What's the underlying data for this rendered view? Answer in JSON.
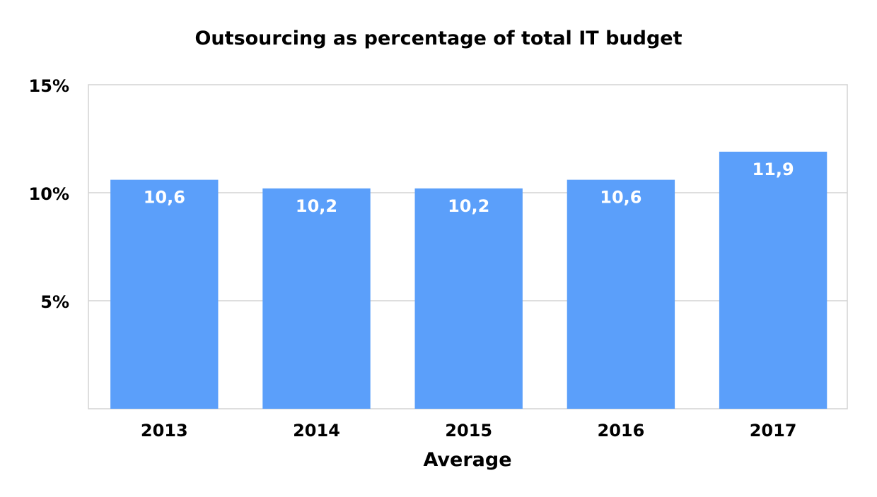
{
  "chart_data": {
    "type": "bar",
    "title": "Outsourcing as percentage of total IT budget",
    "xlabel": "Average",
    "ylabel": "",
    "categories": [
      "2013",
      "2014",
      "2015",
      "2016",
      "2017"
    ],
    "values": [
      10.6,
      10.2,
      10.2,
      10.6,
      11.9
    ],
    "value_labels": [
      "10,6",
      "10,2",
      "10,2",
      "10,6",
      "11,9"
    ],
    "ylim": [
      0,
      15
    ],
    "yticks": [
      5,
      10,
      15
    ],
    "ytick_labels": [
      "5%",
      "10%",
      "15%"
    ],
    "grid": true,
    "legend": "none",
    "colors": {
      "bar": "#5b9ffa",
      "grid": "#d3d3d3",
      "text": "#000000",
      "label": "#ffffff"
    }
  }
}
